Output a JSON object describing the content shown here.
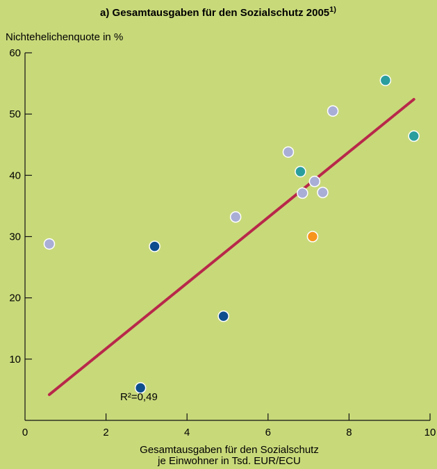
{
  "chart_data": {
    "type": "scatter",
    "title": "a) Gesamtausgaben für den Sozialschutz 2005",
    "title_footnote": "1)",
    "ylabel": "Nichtehelichenquote in %",
    "xlabel": [
      "Gesamtausgaben für den Sozialschutz",
      "je Einwohner in Tsd. EUR/ECU"
    ],
    "xlim": [
      0,
      10
    ],
    "ylim": [
      0,
      60
    ],
    "x_ticks": [
      0,
      2,
      4,
      6,
      8,
      10
    ],
    "y_ticks": [
      10,
      20,
      30,
      40,
      50,
      60
    ],
    "grid": false,
    "annotation": "R²=0,49",
    "trendline": {
      "x": [
        0.6,
        9.6
      ],
      "y": [
        4.2,
        52.4
      ],
      "color": "#b8284a"
    },
    "points": [
      {
        "x": 0.6,
        "y": 28.8,
        "color": "#a9aed6"
      },
      {
        "x": 2.85,
        "y": 5.3,
        "color": "#0e4e8e"
      },
      {
        "x": 3.2,
        "y": 28.4,
        "color": "#0e4e8e"
      },
      {
        "x": 4.9,
        "y": 17.0,
        "color": "#0e4e8e"
      },
      {
        "x": 5.2,
        "y": 33.2,
        "color": "#a9aed6"
      },
      {
        "x": 6.5,
        "y": 43.8,
        "color": "#a9aed6"
      },
      {
        "x": 6.8,
        "y": 40.6,
        "color": "#2a9e9e"
      },
      {
        "x": 6.85,
        "y": 37.1,
        "color": "#a9aed6"
      },
      {
        "x": 7.1,
        "y": 30.0,
        "color": "#f7941d"
      },
      {
        "x": 7.15,
        "y": 39.0,
        "color": "#a9aed6"
      },
      {
        "x": 7.35,
        "y": 37.2,
        "color": "#a9aed6"
      },
      {
        "x": 7.6,
        "y": 50.5,
        "color": "#a9aed6"
      },
      {
        "x": 8.9,
        "y": 55.5,
        "color": "#2a9e9e"
      },
      {
        "x": 9.6,
        "y": 46.4,
        "color": "#2a9e9e"
      }
    ]
  },
  "colors": {
    "background": "#c8d97a",
    "axis": "#111111",
    "point_outline": "#ffffff"
  }
}
